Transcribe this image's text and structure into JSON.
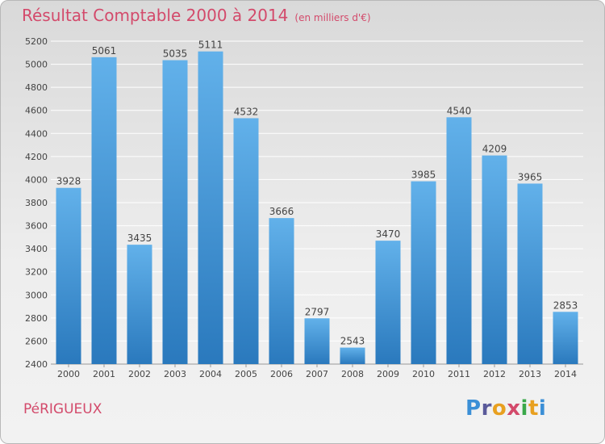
{
  "title": "Résultat Comptable 2000 à 2014",
  "subtitle": "(en milliers d'€)",
  "city": "PéRIGUEUX",
  "logo": {
    "text": "Proxiti",
    "letters": [
      {
        "ch": "P",
        "color": "#3b8fd6"
      },
      {
        "ch": "r",
        "color": "#5a5a9a"
      },
      {
        "ch": "o",
        "color": "#e8a020"
      },
      {
        "ch": "x",
        "color": "#d34a6b"
      },
      {
        "ch": "i",
        "color": "#3aa84a"
      },
      {
        "ch": "t",
        "color": "#e8a020"
      },
      {
        "ch": "i",
        "color": "#3b8fd6"
      }
    ]
  },
  "colors": {
    "bar_top": "#62b1ea",
    "bar_bottom": "#2a79bd",
    "grid": "#ffffff",
    "text": "#444444",
    "accent": "#d34a6b"
  },
  "chart_data": {
    "type": "bar",
    "categories": [
      "2000",
      "2001",
      "2002",
      "2003",
      "2004",
      "2005",
      "2006",
      "2007",
      "2008",
      "2009",
      "2010",
      "2011",
      "2012",
      "2013",
      "2014"
    ],
    "values": [
      3928,
      5061,
      3435,
      5035,
      5111,
      4532,
      3666,
      2797,
      2543,
      3470,
      3985,
      4540,
      4209,
      3965,
      2853
    ],
    "ylim": [
      2400,
      5200
    ],
    "yticks": [
      2400,
      2600,
      2800,
      3000,
      3200,
      3400,
      3600,
      3800,
      4000,
      4200,
      4400,
      4600,
      4800,
      5000,
      5200
    ],
    "grid": true,
    "legend": "none"
  }
}
